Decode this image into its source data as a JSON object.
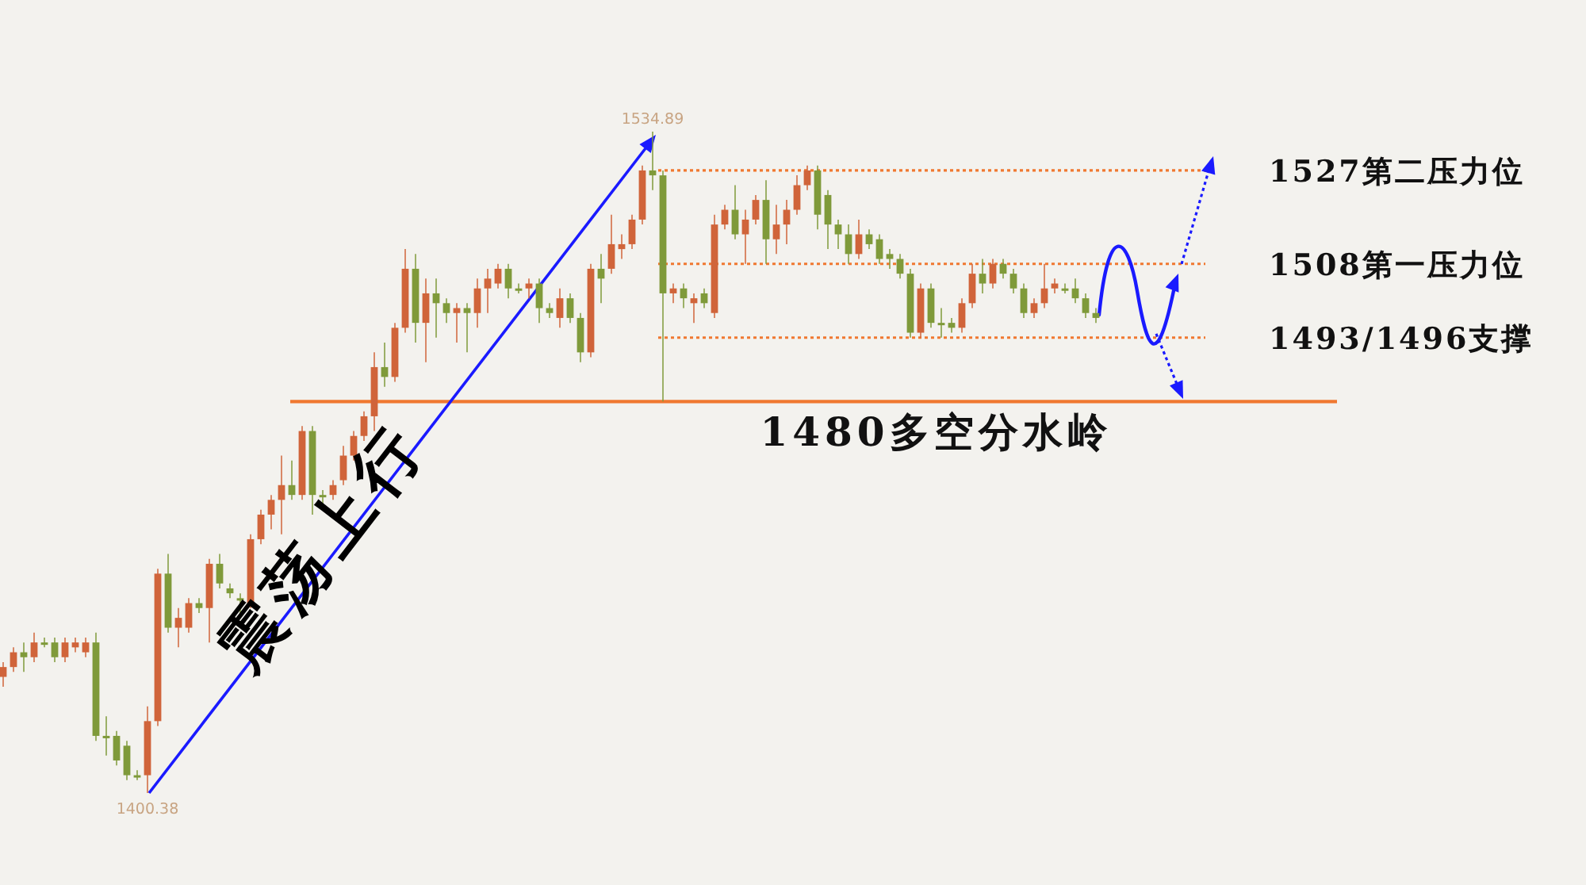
{
  "chart_data": {
    "type": "candlestick",
    "categories": [
      null,
      null,
      null,
      null,
      null,
      null,
      null,
      null,
      null,
      null,
      null,
      null,
      null,
      null,
      null,
      null,
      null,
      null,
      null,
      null,
      null,
      null,
      null,
      null,
      null,
      null,
      null,
      null,
      null,
      null,
      null,
      null,
      null,
      null,
      null,
      null,
      null,
      null,
      null,
      null,
      null,
      null,
      null,
      null,
      null,
      null,
      null,
      null,
      null,
      null,
      null,
      null,
      null,
      null,
      null,
      null,
      null,
      null,
      null,
      null,
      null,
      null,
      null,
      null,
      null,
      null,
      null,
      null,
      null,
      null,
      null,
      null,
      null,
      null,
      null,
      null,
      null,
      null,
      null,
      null,
      null,
      null,
      null,
      null,
      null,
      null,
      null,
      null,
      null,
      null,
      null,
      null,
      null,
      null,
      null,
      null,
      null,
      null,
      null,
      null,
      null,
      null,
      null,
      null,
      null,
      null,
      null
    ],
    "ohlc": [
      [
        1424,
        1427,
        1422,
        1426
      ],
      [
        1426,
        1430,
        1425,
        1429
      ],
      [
        1429,
        1431,
        1425,
        1428
      ],
      [
        1428,
        1433,
        1427,
        1431
      ],
      [
        1431,
        1432,
        1430,
        1431
      ],
      [
        1431,
        1432,
        1427,
        1428
      ],
      [
        1428,
        1432,
        1427,
        1431
      ],
      [
        1430,
        1432,
        1429,
        1431
      ],
      [
        1429,
        1432,
        1428,
        1431
      ],
      [
        1431,
        1433,
        1411,
        1412
      ],
      [
        1412,
        1416,
        1408,
        1412
      ],
      [
        1412,
        1413,
        1406,
        1407
      ],
      [
        1410,
        1411,
        1403,
        1404
      ],
      [
        1404,
        1405,
        1403,
        1404
      ],
      [
        1404,
        1418,
        1400.38,
        1415
      ],
      [
        1415,
        1446,
        1414,
        1445
      ],
      [
        1445,
        1449,
        1433,
        1434
      ],
      [
        1434,
        1438,
        1430,
        1436
      ],
      [
        1434,
        1440,
        1433,
        1439
      ],
      [
        1439,
        1440,
        1437,
        1438
      ],
      [
        1438,
        1448,
        1431,
        1447
      ],
      [
        1447,
        1449,
        1442,
        1443
      ],
      [
        1442,
        1443,
        1440,
        1441
      ],
      [
        1440,
        1441,
        1437,
        1440
      ],
      [
        1439,
        1453,
        1438,
        1452
      ],
      [
        1452,
        1458,
        1451,
        1457
      ],
      [
        1457,
        1461,
        1454,
        1460
      ],
      [
        1460,
        1469,
        1453,
        1463
      ],
      [
        1463,
        1468,
        1460,
        1461
      ],
      [
        1461,
        1475,
        1460,
        1474
      ],
      [
        1474,
        1475,
        1457,
        1461
      ],
      [
        1461,
        1462,
        1459,
        1461
      ],
      [
        1461,
        1464,
        1460,
        1463
      ],
      [
        1464,
        1471,
        1463,
        1469
      ],
      [
        1469,
        1474,
        1468,
        1473
      ],
      [
        1473,
        1478,
        1472,
        1477
      ],
      [
        1477,
        1490,
        1474,
        1487
      ],
      [
        1487,
        1492,
        1483,
        1485
      ],
      [
        1485,
        1496,
        1484,
        1495
      ],
      [
        1495,
        1511,
        1494,
        1507
      ],
      [
        1507,
        1510,
        1492,
        1496
      ],
      [
        1496,
        1505,
        1488,
        1502
      ],
      [
        1502,
        1505,
        1493,
        1500
      ],
      [
        1500,
        1501,
        1496,
        1498
      ],
      [
        1498,
        1500,
        1492,
        1499
      ],
      [
        1499,
        1500,
        1490,
        1498
      ],
      [
        1498,
        1505,
        1495,
        1503
      ],
      [
        1503,
        1507,
        1498,
        1505
      ],
      [
        1504,
        1508,
        1503,
        1507
      ],
      [
        1507,
        1508,
        1501,
        1503
      ],
      [
        1503,
        1504,
        1502,
        1503
      ],
      [
        1503,
        1505,
        1501,
        1504
      ],
      [
        1504,
        1505,
        1496,
        1499
      ],
      [
        1499,
        1500,
        1497,
        1498
      ],
      [
        1497,
        1503,
        1495,
        1501
      ],
      [
        1501,
        1502,
        1496,
        1497
      ],
      [
        1497,
        1498,
        1488,
        1490
      ],
      [
        1490,
        1508,
        1489,
        1507
      ],
      [
        1507,
        1510,
        1500,
        1505
      ],
      [
        1507,
        1518,
        1506,
        1512
      ],
      [
        1511,
        1514,
        1509,
        1512
      ],
      [
        1512,
        1518,
        1511,
        1517
      ],
      [
        1517,
        1528,
        1516,
        1527
      ],
      [
        1527,
        1534.89,
        1523,
        1526
      ],
      [
        1526,
        1527,
        1480,
        1502
      ],
      [
        1502,
        1504,
        1500,
        1503
      ],
      [
        1503,
        1504,
        1499,
        1501
      ],
      [
        1500,
        1502,
        1496,
        1501
      ],
      [
        1502,
        1503,
        1499,
        1500
      ],
      [
        1498,
        1518,
        1497,
        1516
      ],
      [
        1516,
        1520,
        1515,
        1519
      ],
      [
        1519,
        1524,
        1513,
        1514
      ],
      [
        1514,
        1519,
        1508,
        1517
      ],
      [
        1517,
        1522,
        1516,
        1521
      ],
      [
        1521,
        1525,
        1508,
        1513
      ],
      [
        1513,
        1520,
        1510,
        1516
      ],
      [
        1516,
        1521,
        1512,
        1519
      ],
      [
        1519,
        1526,
        1518,
        1524
      ],
      [
        1524,
        1528,
        1523,
        1527
      ],
      [
        1527,
        1528,
        1515,
        1518
      ],
      [
        1522,
        1523,
        1511,
        1516
      ],
      [
        1516,
        1517,
        1511,
        1514
      ],
      [
        1514,
        1516,
        1508,
        1510
      ],
      [
        1510,
        1517,
        1509,
        1514
      ],
      [
        1514,
        1515,
        1511,
        1512
      ],
      [
        1513,
        1514,
        1508,
        1509
      ],
      [
        1510,
        1511,
        1507,
        1509
      ],
      [
        1509,
        1510,
        1505,
        1506
      ],
      [
        1506,
        1507,
        1493,
        1494
      ],
      [
        1494,
        1504,
        1493,
        1503
      ],
      [
        1503,
        1504,
        1495,
        1496
      ],
      [
        1496,
        1499,
        1493,
        1496
      ],
      [
        1496,
        1497,
        1494,
        1495
      ],
      [
        1495,
        1501,
        1494,
        1500
      ],
      [
        1500,
        1508,
        1499,
        1506
      ],
      [
        1506,
        1509,
        1502,
        1504
      ],
      [
        1504,
        1509,
        1503,
        1508
      ],
      [
        1508,
        1509,
        1505,
        1506
      ],
      [
        1506,
        1507,
        1502,
        1503
      ],
      [
        1503,
        1504,
        1497,
        1498
      ],
      [
        1498,
        1501,
        1497,
        1500
      ],
      [
        1500,
        1508,
        1499,
        1503
      ],
      [
        1503,
        1505,
        1502,
        1504
      ],
      [
        1503,
        1504,
        1502,
        1503
      ],
      [
        1503,
        1505,
        1500,
        1501
      ],
      [
        1501,
        1502,
        1497,
        1498
      ],
      [
        1498,
        1499,
        1496,
        1497
      ]
    ],
    "colors": [
      "#d0643a",
      "#d0643a",
      "#7f9a3a",
      "#d0643a",
      "#7f9a3a",
      "#7f9a3a",
      "#d0643a",
      "#d0643a",
      "#d0643a",
      "#7f9a3a",
      "#7f9a3a",
      "#7f9a3a",
      "#7f9a3a",
      "#7f9a3a",
      "#d0643a",
      "#d0643a",
      "#7f9a3a",
      "#d0643a",
      "#d0643a",
      "#7f9a3a",
      "#d0643a",
      "#7f9a3a",
      "#7f9a3a",
      "#7f9a3a",
      "#d0643a",
      "#d0643a",
      "#d0643a",
      "#d0643a",
      "#7f9a3a",
      "#d0643a",
      "#7f9a3a",
      "#7f9a3a",
      "#d0643a",
      "#d0643a",
      "#d0643a",
      "#d0643a",
      "#d0643a",
      "#7f9a3a",
      "#d0643a",
      "#d0643a",
      "#7f9a3a",
      "#d0643a",
      "#7f9a3a",
      "#7f9a3a",
      "#d0643a",
      "#7f9a3a",
      "#d0643a",
      "#d0643a",
      "#d0643a",
      "#7f9a3a",
      "#7f9a3a",
      "#d0643a",
      "#7f9a3a",
      "#7f9a3a",
      "#d0643a",
      "#7f9a3a",
      "#7f9a3a",
      "#d0643a",
      "#7f9a3a",
      "#d0643a",
      "#d0643a",
      "#d0643a",
      "#d0643a",
      "#7f9a3a",
      "#7f9a3a",
      "#d0643a",
      "#7f9a3a",
      "#d0643a",
      "#7f9a3a",
      "#d0643a",
      "#d0643a",
      "#7f9a3a",
      "#d0643a",
      "#d0643a",
      "#7f9a3a",
      "#d0643a",
      "#d0643a",
      "#d0643a",
      "#d0643a",
      "#7f9a3a",
      "#7f9a3a",
      "#7f9a3a",
      "#7f9a3a",
      "#d0643a",
      "#7f9a3a",
      "#7f9a3a",
      "#7f9a3a",
      "#7f9a3a",
      "#7f9a3a",
      "#d0643a",
      "#7f9a3a",
      "#7f9a3a",
      "#7f9a3a",
      "#d0643a",
      "#d0643a",
      "#7f9a3a",
      "#d0643a",
      "#7f9a3a",
      "#7f9a3a",
      "#7f9a3a",
      "#d0643a",
      "#d0643a",
      "#d0643a",
      "#7f9a3a",
      "#7f9a3a",
      "#7f9a3a",
      "#7f9a3a"
    ],
    "ref_lines": [
      {
        "axis": "y",
        "value": 1527,
        "label": "1527第二压力位",
        "color": "#f07830",
        "line_style": "dotted"
      },
      {
        "axis": "y",
        "value": 1508,
        "label": "1508第一压力位",
        "color": "#f07830",
        "line_style": "dotted"
      },
      {
        "axis": "y",
        "value": 1493,
        "label": "1493/1496支撑",
        "color": "#f07830",
        "line_style": "dotted"
      },
      {
        "axis": "y",
        "value": 1480,
        "label": "1480多空分水岭",
        "color": "#f07830",
        "line_style": "solid"
      }
    ],
    "annotations": [
      {
        "text": "1534.89",
        "y": 1534.89
      },
      {
        "text": "1400.38",
        "y": 1400.38
      },
      "震荡上行"
    ]
  }
}
